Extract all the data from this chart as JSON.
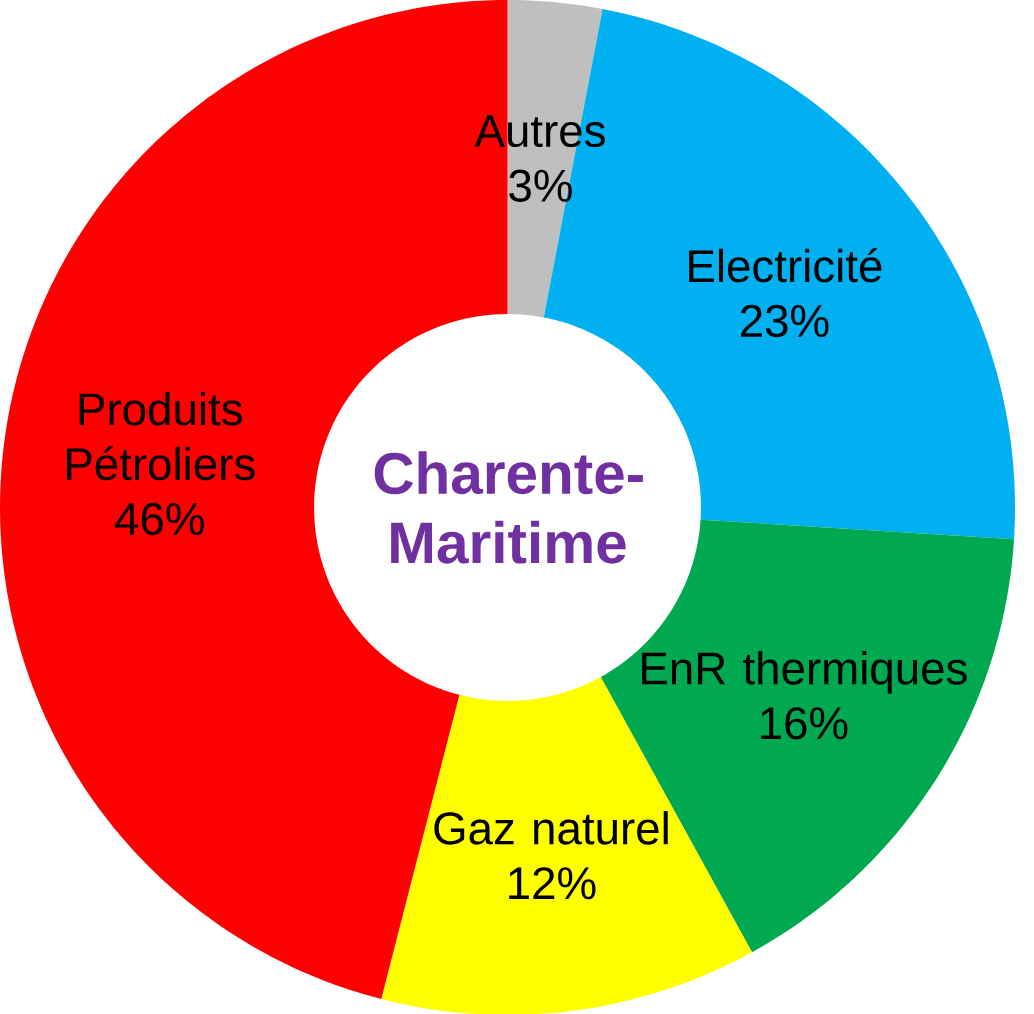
{
  "chart_data": {
    "type": "donut",
    "title": "Charente-Maritime",
    "categories": [
      "Autres",
      "Electricité",
      "EnR thermiques",
      "Gaz naturel",
      "Produits Pétroliers"
    ],
    "values": [
      3,
      23,
      16,
      12,
      46
    ],
    "value_labels": [
      "3%",
      "23%",
      "16%",
      "12%",
      "46%"
    ],
    "colors": [
      "#bfbfbf",
      "#00b0f0",
      "#00a84f",
      "#ffff00",
      "#ff0000"
    ]
  }
}
